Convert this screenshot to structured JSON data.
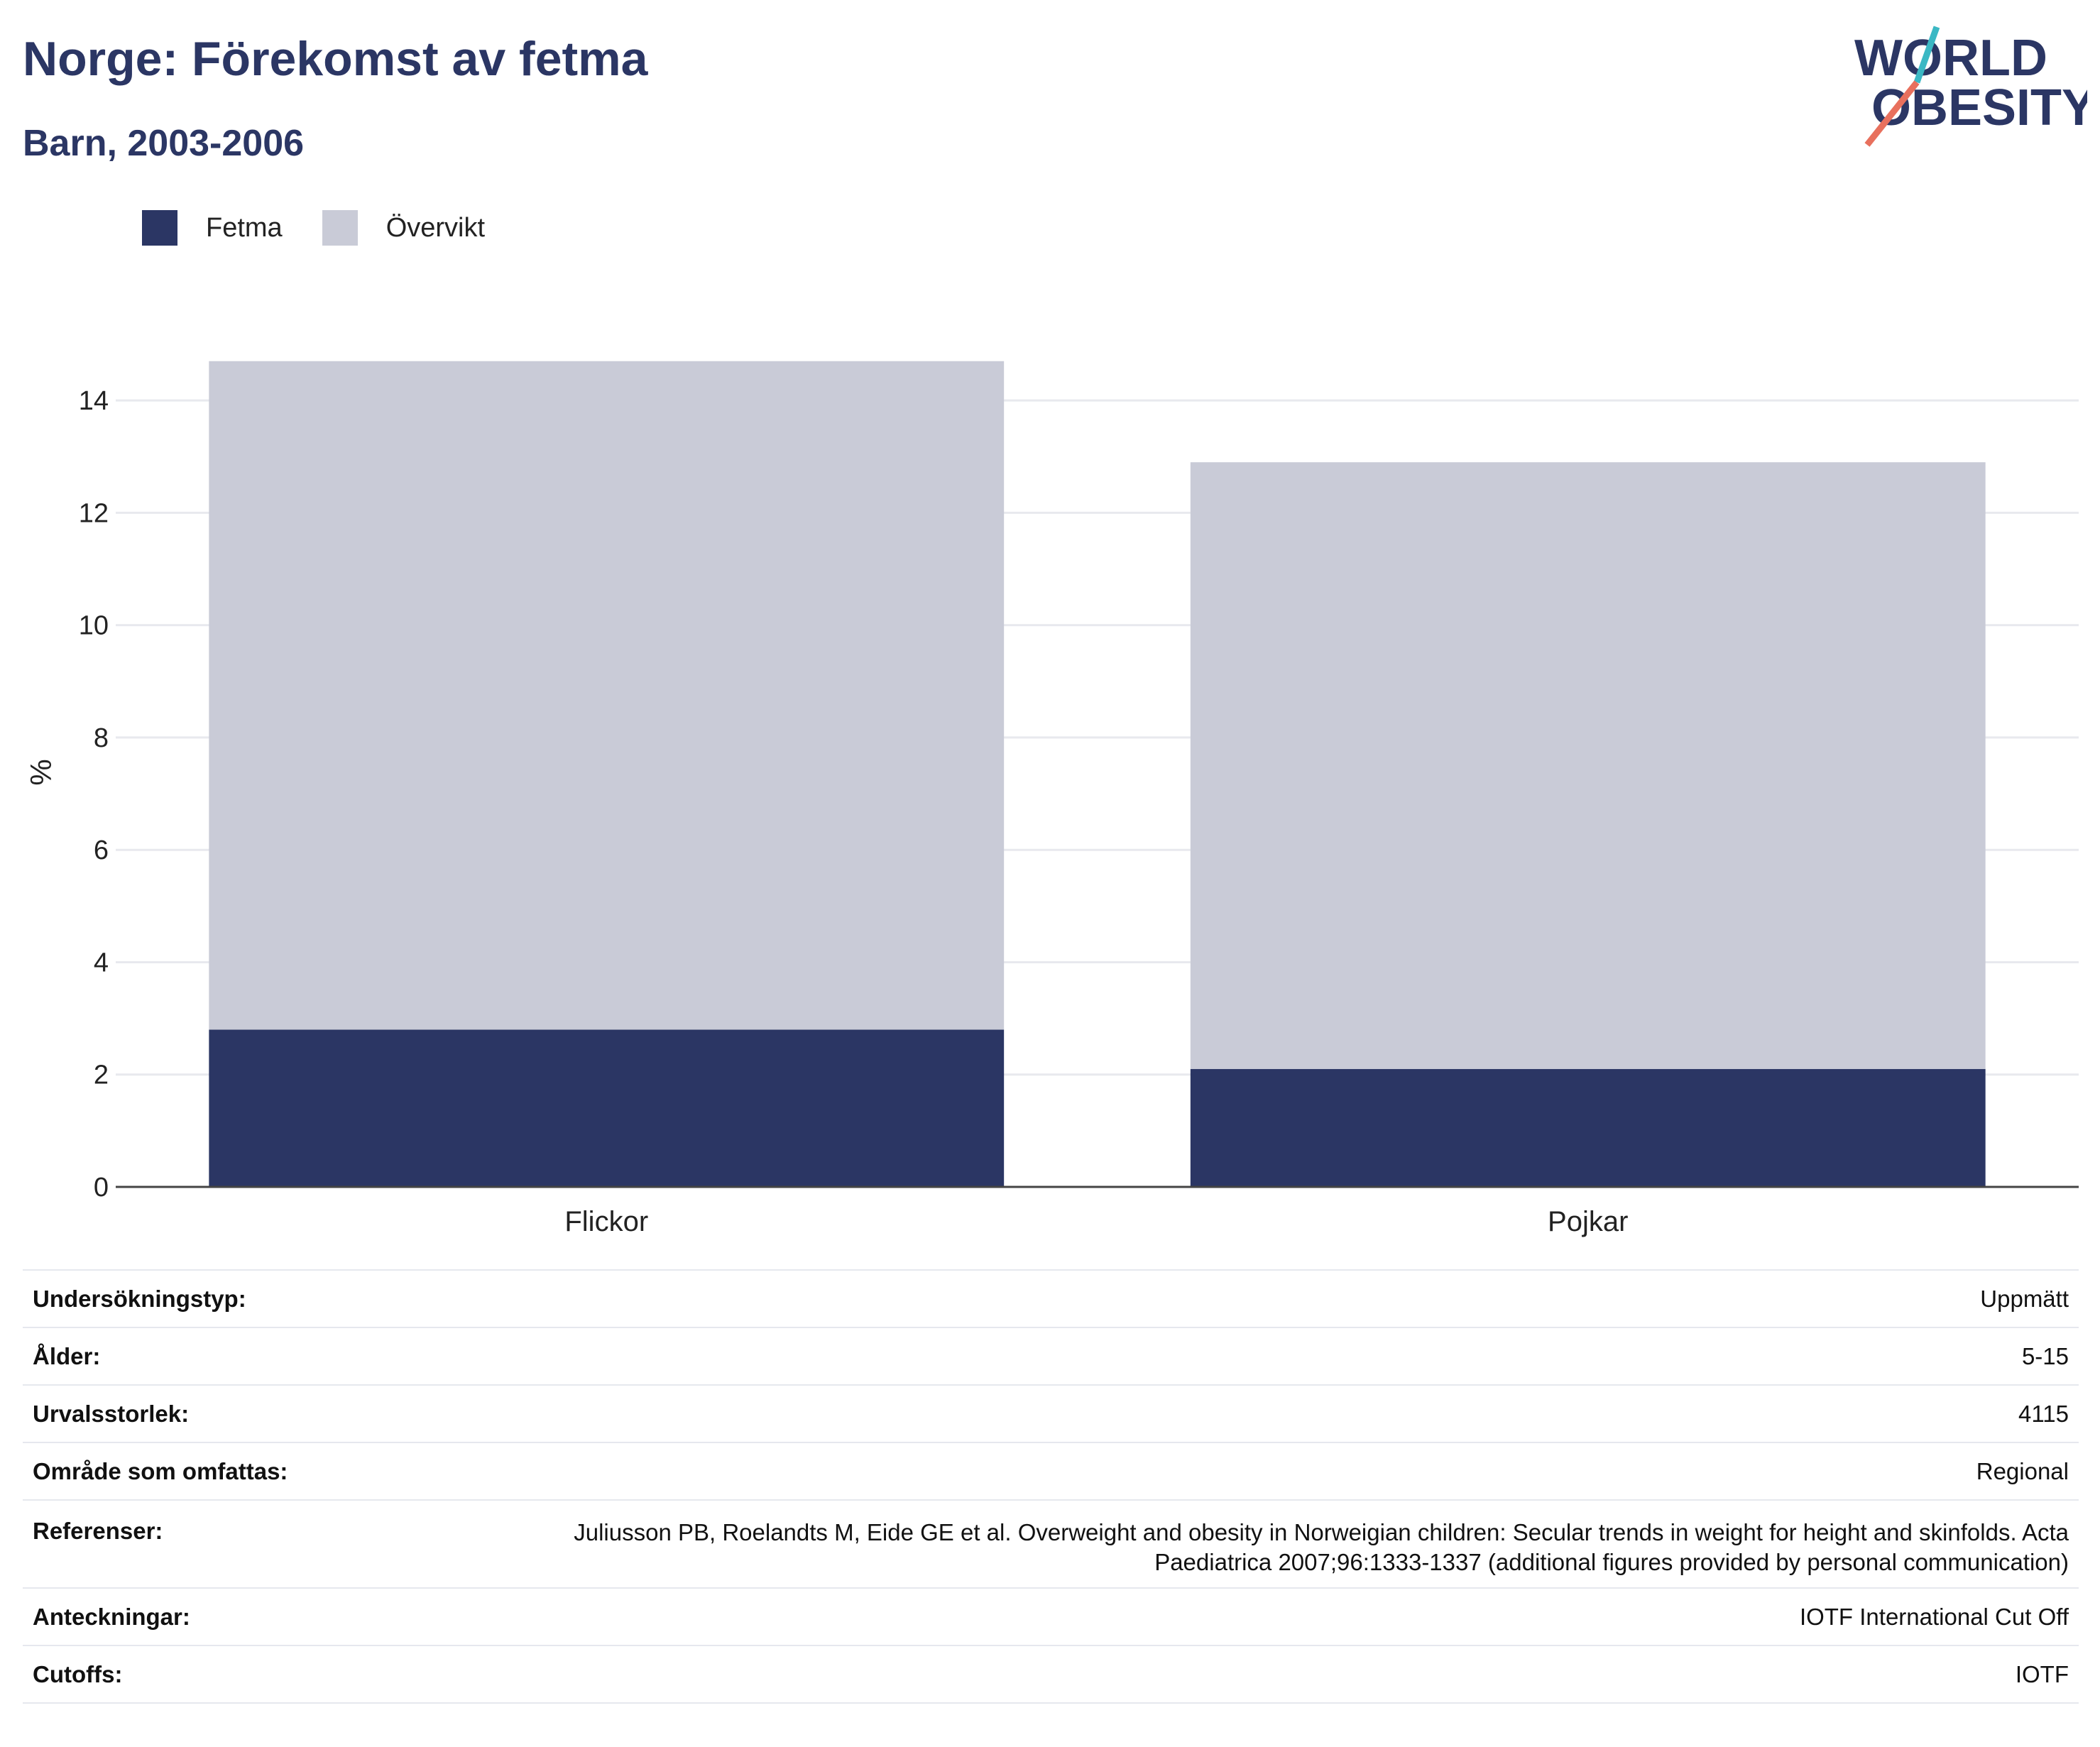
{
  "title": "Norge: Förekomst av fetma",
  "subtitle": "Barn, 2003-2006",
  "logo": {
    "line1": "WORLD",
    "line2": "OBESITY"
  },
  "colors": {
    "fetma": "#2b3664",
    "overvikt": "#c9cbd7",
    "text": "#2b3664",
    "grid": "#e8e9ee",
    "axis": "#444444"
  },
  "legend": [
    {
      "label": "Fetma",
      "color": "#2b3664"
    },
    {
      "label": "Övervikt",
      "color": "#c9cbd7"
    }
  ],
  "chart_data": {
    "type": "bar",
    "stacked": true,
    "categories": [
      "Flickor",
      "Pojkar"
    ],
    "series": [
      {
        "name": "Fetma",
        "values": [
          2.8,
          2.1
        ]
      },
      {
        "name": "Övervikt",
        "values": [
          11.9,
          10.8
        ]
      }
    ],
    "ylabel": "%",
    "ylim": [
      0,
      15
    ],
    "yticks": [
      0,
      2,
      4,
      6,
      8,
      10,
      12,
      14
    ],
    "grid": true,
    "legend_position": "top-left"
  },
  "meta": [
    {
      "label": "Undersökningstyp:",
      "value": "Uppmätt"
    },
    {
      "label": "Ålder:",
      "value": "5-15"
    },
    {
      "label": "Urvalsstorlek:",
      "value": "4115"
    },
    {
      "label": "Område som omfattas:",
      "value": "Regional"
    },
    {
      "label": "Referenser:",
      "value": "Juliusson PB, Roelandts M, Eide GE et al. Overweight and obesity in Norweigian children: Secular trends in weight for height and skinfolds. Acta Paediatrica 2007;96:1333-1337 (additional figures provided by personal communication)"
    },
    {
      "label": "Anteckningar:",
      "value": "IOTF International Cut Off"
    },
    {
      "label": "Cutoffs:",
      "value": "IOTF"
    }
  ]
}
